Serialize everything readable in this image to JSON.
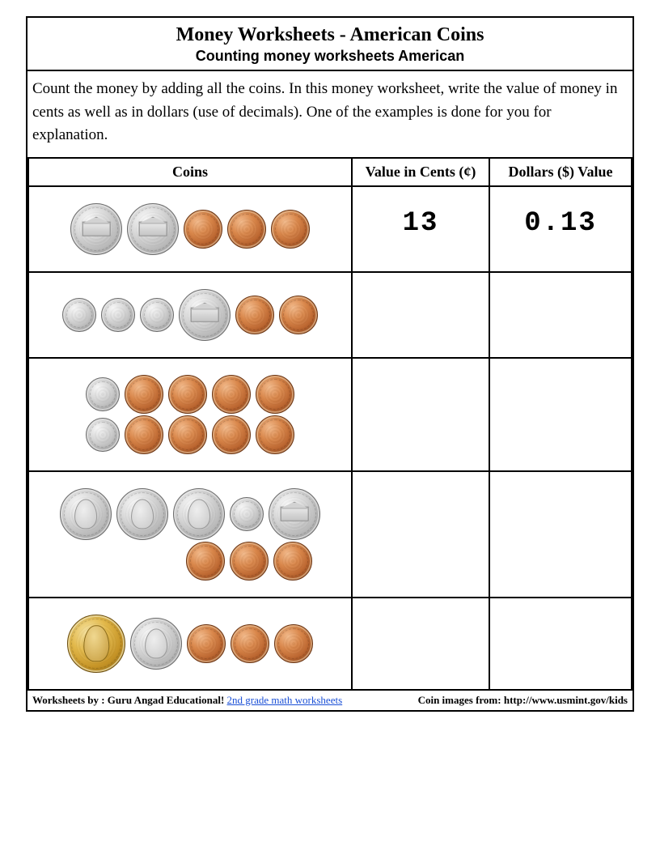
{
  "title": "Money Worksheets - American Coins",
  "subtitle": "Counting money worksheets American",
  "instructions": "Count the money by adding all the coins. In this money worksheet, write the value of money in cents as well as in dollars (use of decimals). One of the examples is done for you for explanation.",
  "headers": {
    "coins": "Coins",
    "cents": "Value in Cents (¢)",
    "dollars": "Dollars ($) Value"
  },
  "coin_types": {
    "penny": {
      "color": "copper",
      "size": "sz-s",
      "kind": "plain"
    },
    "nickel": {
      "color": "silver",
      "size": "sz-l",
      "kind": "nickel-rev"
    },
    "dime": {
      "color": "silver",
      "size": "sz-xs",
      "kind": "plain"
    },
    "quarter": {
      "color": "silver",
      "size": "sz-l",
      "kind": "profile"
    },
    "dollar_gold": {
      "color": "gold",
      "size": "sz-xl",
      "kind": "liberty"
    }
  },
  "rows": [
    {
      "coin_lines": [
        [
          "nickel",
          "nickel",
          "penny",
          "penny",
          "penny"
        ]
      ],
      "cents": "13",
      "dollars": "0.13"
    },
    {
      "coin_lines": [
        [
          "dime",
          "dime",
          "dime",
          "nickel",
          "penny",
          "penny"
        ]
      ],
      "cents": "",
      "dollars": ""
    },
    {
      "coin_lines": [
        [
          "dime",
          "penny",
          "penny",
          "penny",
          "penny"
        ],
        [
          "dime",
          "penny",
          "penny",
          "penny",
          "penny"
        ]
      ],
      "cents": "",
      "dollars": ""
    },
    {
      "coin_lines": [
        [
          "quarter",
          "quarter",
          "quarter",
          "dime",
          "nickel"
        ],
        [
          "penny",
          "penny",
          "penny"
        ]
      ],
      "line_align": [
        "center",
        "flex-end"
      ],
      "cents": "",
      "dollars": ""
    },
    {
      "coin_lines": [
        [
          "dollar_gold",
          "quarter",
          "penny",
          "penny",
          "penny"
        ]
      ],
      "cents": "",
      "dollars": ""
    }
  ],
  "footer": {
    "left_prefix": "Worksheets by : Guru Angad Educational!  ",
    "link_text": "2nd grade math worksheets",
    "right": "Coin images from: http://www.usmint.gov/kids"
  },
  "colors": {
    "border": "#000000",
    "background": "#ffffff",
    "link": "#1a4fd6",
    "copper": "#b9642f",
    "silver": "#bfbfbf",
    "gold": "#c59326"
  }
}
